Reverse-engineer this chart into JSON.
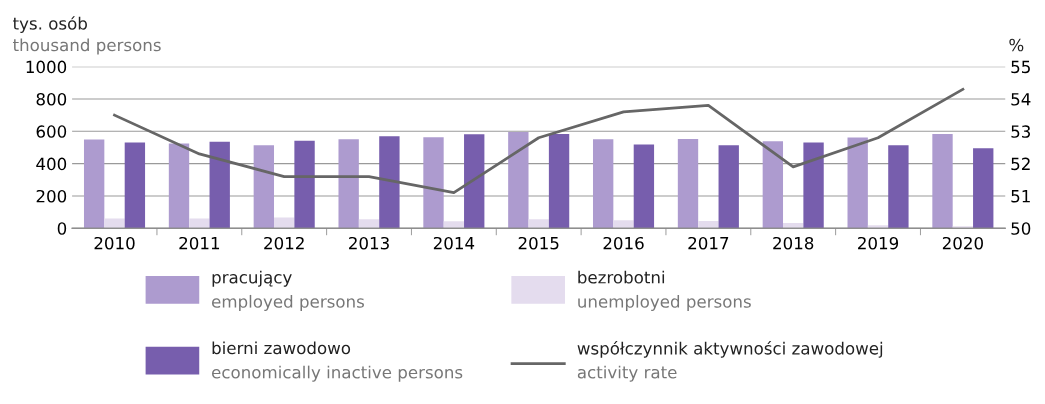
{
  "chart_data": {
    "type": "bar",
    "ylabel": "tys. osób\nthousand persons",
    "y2label": "%",
    "categories": [
      "2010",
      "2011",
      "2012",
      "2013",
      "2014",
      "2015",
      "2016",
      "2017",
      "2018",
      "2019",
      "2020"
    ],
    "series": [
      {
        "name": "pracujący\nemployed persons",
        "color": "#ad9bcf",
        "values": [
          549,
          524,
          513,
          551,
          563,
          596,
          551,
          553,
          538,
          561,
          583
        ]
      },
      {
        "name": "bezrobotni\nunemployed persons",
        "color": "#e4dcee",
        "values": [
          60,
          60,
          66,
          56,
          43,
          56,
          49,
          45,
          32,
          19,
          13
        ]
      },
      {
        "name": "bierni zawodowo\neconomically inactive persons",
        "color": "#775ead",
        "values": [
          530,
          536,
          542,
          569,
          582,
          583,
          518,
          514,
          531,
          514,
          495
        ]
      },
      {
        "name": "współczynnik aktywności zawodowej\nactivity rate",
        "color": "#666666",
        "type": "line",
        "axis": "y2",
        "values": [
          53.5,
          52.3,
          51.6,
          51.6,
          51.1,
          52.8,
          53.6,
          53.8,
          51.9,
          52.8,
          54.3
        ]
      }
    ],
    "ylim": [
      0,
      1000
    ],
    "yticks": [
      0,
      200,
      400,
      600,
      800,
      1000
    ],
    "y2lim": [
      50,
      55
    ],
    "y2ticks": [
      50,
      51,
      52,
      53,
      54,
      55
    ],
    "grid": "y",
    "legend": "bottom",
    "marker": "none",
    "line_style": "solid"
  }
}
